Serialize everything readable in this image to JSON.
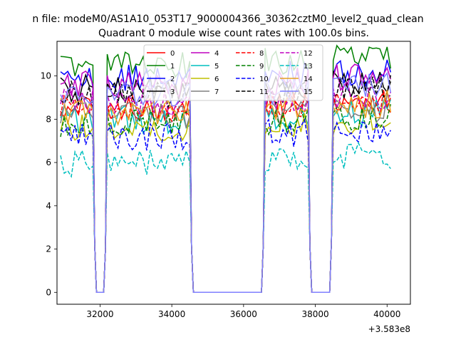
{
  "chart_data": {
    "type": "line",
    "suptitle": "n file: modeM0/AS1A10_053T17_9000004366_30362cztM0_level2_quad_clean",
    "title": "Quadrant 0 module wise count rates with 100.0s bins.",
    "xlabel": "",
    "ylabel": "",
    "x_offset_label": "+3.583e8",
    "xlim": [
      30800,
      40650
    ],
    "ylim": [
      -0.55,
      11.6
    ],
    "xticks": [
      32000,
      34000,
      36000,
      38000,
      40000
    ],
    "yticks": [
      0,
      2,
      4,
      6,
      8,
      10
    ],
    "grid": false,
    "legend_placement": "upper center",
    "segments": [
      {
        "start": 30900,
        "end": 31800,
        "step": 100
      },
      {
        "start": 32200,
        "end": 34500,
        "step": 100
      },
      {
        "start": 36600,
        "end": 37800,
        "step": 100
      },
      {
        "start": 38500,
        "end": 40100,
        "step": 100
      }
    ],
    "zero_points": [
      31900,
      32000,
      32100,
      34600,
      34700,
      34800,
      34900,
      35000,
      35100,
      35200,
      35300,
      35400,
      35500,
      35600,
      35700,
      35800,
      35900,
      36000,
      36100,
      36200,
      36300,
      36400,
      36500,
      37900,
      38000,
      38100,
      38200,
      38300,
      38400
    ],
    "edge_points": [
      {
        "x": 31850,
        "y": 2.2
      },
      {
        "x": 32150,
        "y": 2.0
      },
      {
        "x": 34550,
        "y": 2.1
      },
      {
        "x": 36550,
        "y": 2.2
      },
      {
        "x": 37850,
        "y": 2.1
      },
      {
        "x": 38450,
        "y": 2.4
      }
    ],
    "series": [
      {
        "name": "0",
        "color": "#ff0000",
        "dash": "solid",
        "level": 8.6
      },
      {
        "name": "1",
        "color": "#008000",
        "dash": "solid",
        "level": 10.5
      },
      {
        "name": "2",
        "color": "#0000ff",
        "dash": "solid",
        "level": 9.9
      },
      {
        "name": "3",
        "color": "#000000",
        "dash": "solid",
        "level": 9.4
      },
      {
        "name": "4",
        "color": "#bf00bf",
        "dash": "solid",
        "level": 9.6
      },
      {
        "name": "5",
        "color": "#00bfbf",
        "dash": "solid",
        "level": 8.0
      },
      {
        "name": "6",
        "color": "#bfbf00",
        "dash": "solid",
        "level": 7.6
      },
      {
        "name": "7",
        "color": "#808080",
        "dash": "solid",
        "level": 8.2
      },
      {
        "name": "8",
        "color": "#ff0000",
        "dash": "dashed",
        "level": 8.5
      },
      {
        "name": "9",
        "color": "#008000",
        "dash": "dashed",
        "level": 7.8
      },
      {
        "name": "10",
        "color": "#0000ff",
        "dash": "dashed",
        "level": 7.2
      },
      {
        "name": "11",
        "color": "#000000",
        "dash": "dashed",
        "level": 9.1
      },
      {
        "name": "12",
        "color": "#bf00bf",
        "dash": "dashed",
        "level": 8.8
      },
      {
        "name": "13",
        "color": "#00bfbf",
        "dash": "dashed",
        "level": 6.0
      },
      {
        "name": "14",
        "color": "#e6a020",
        "dash": "solid",
        "level": 8.4
      },
      {
        "name": "15",
        "color": "#7f7fff",
        "dash": "solid",
        "level": 9.2
      }
    ]
  }
}
